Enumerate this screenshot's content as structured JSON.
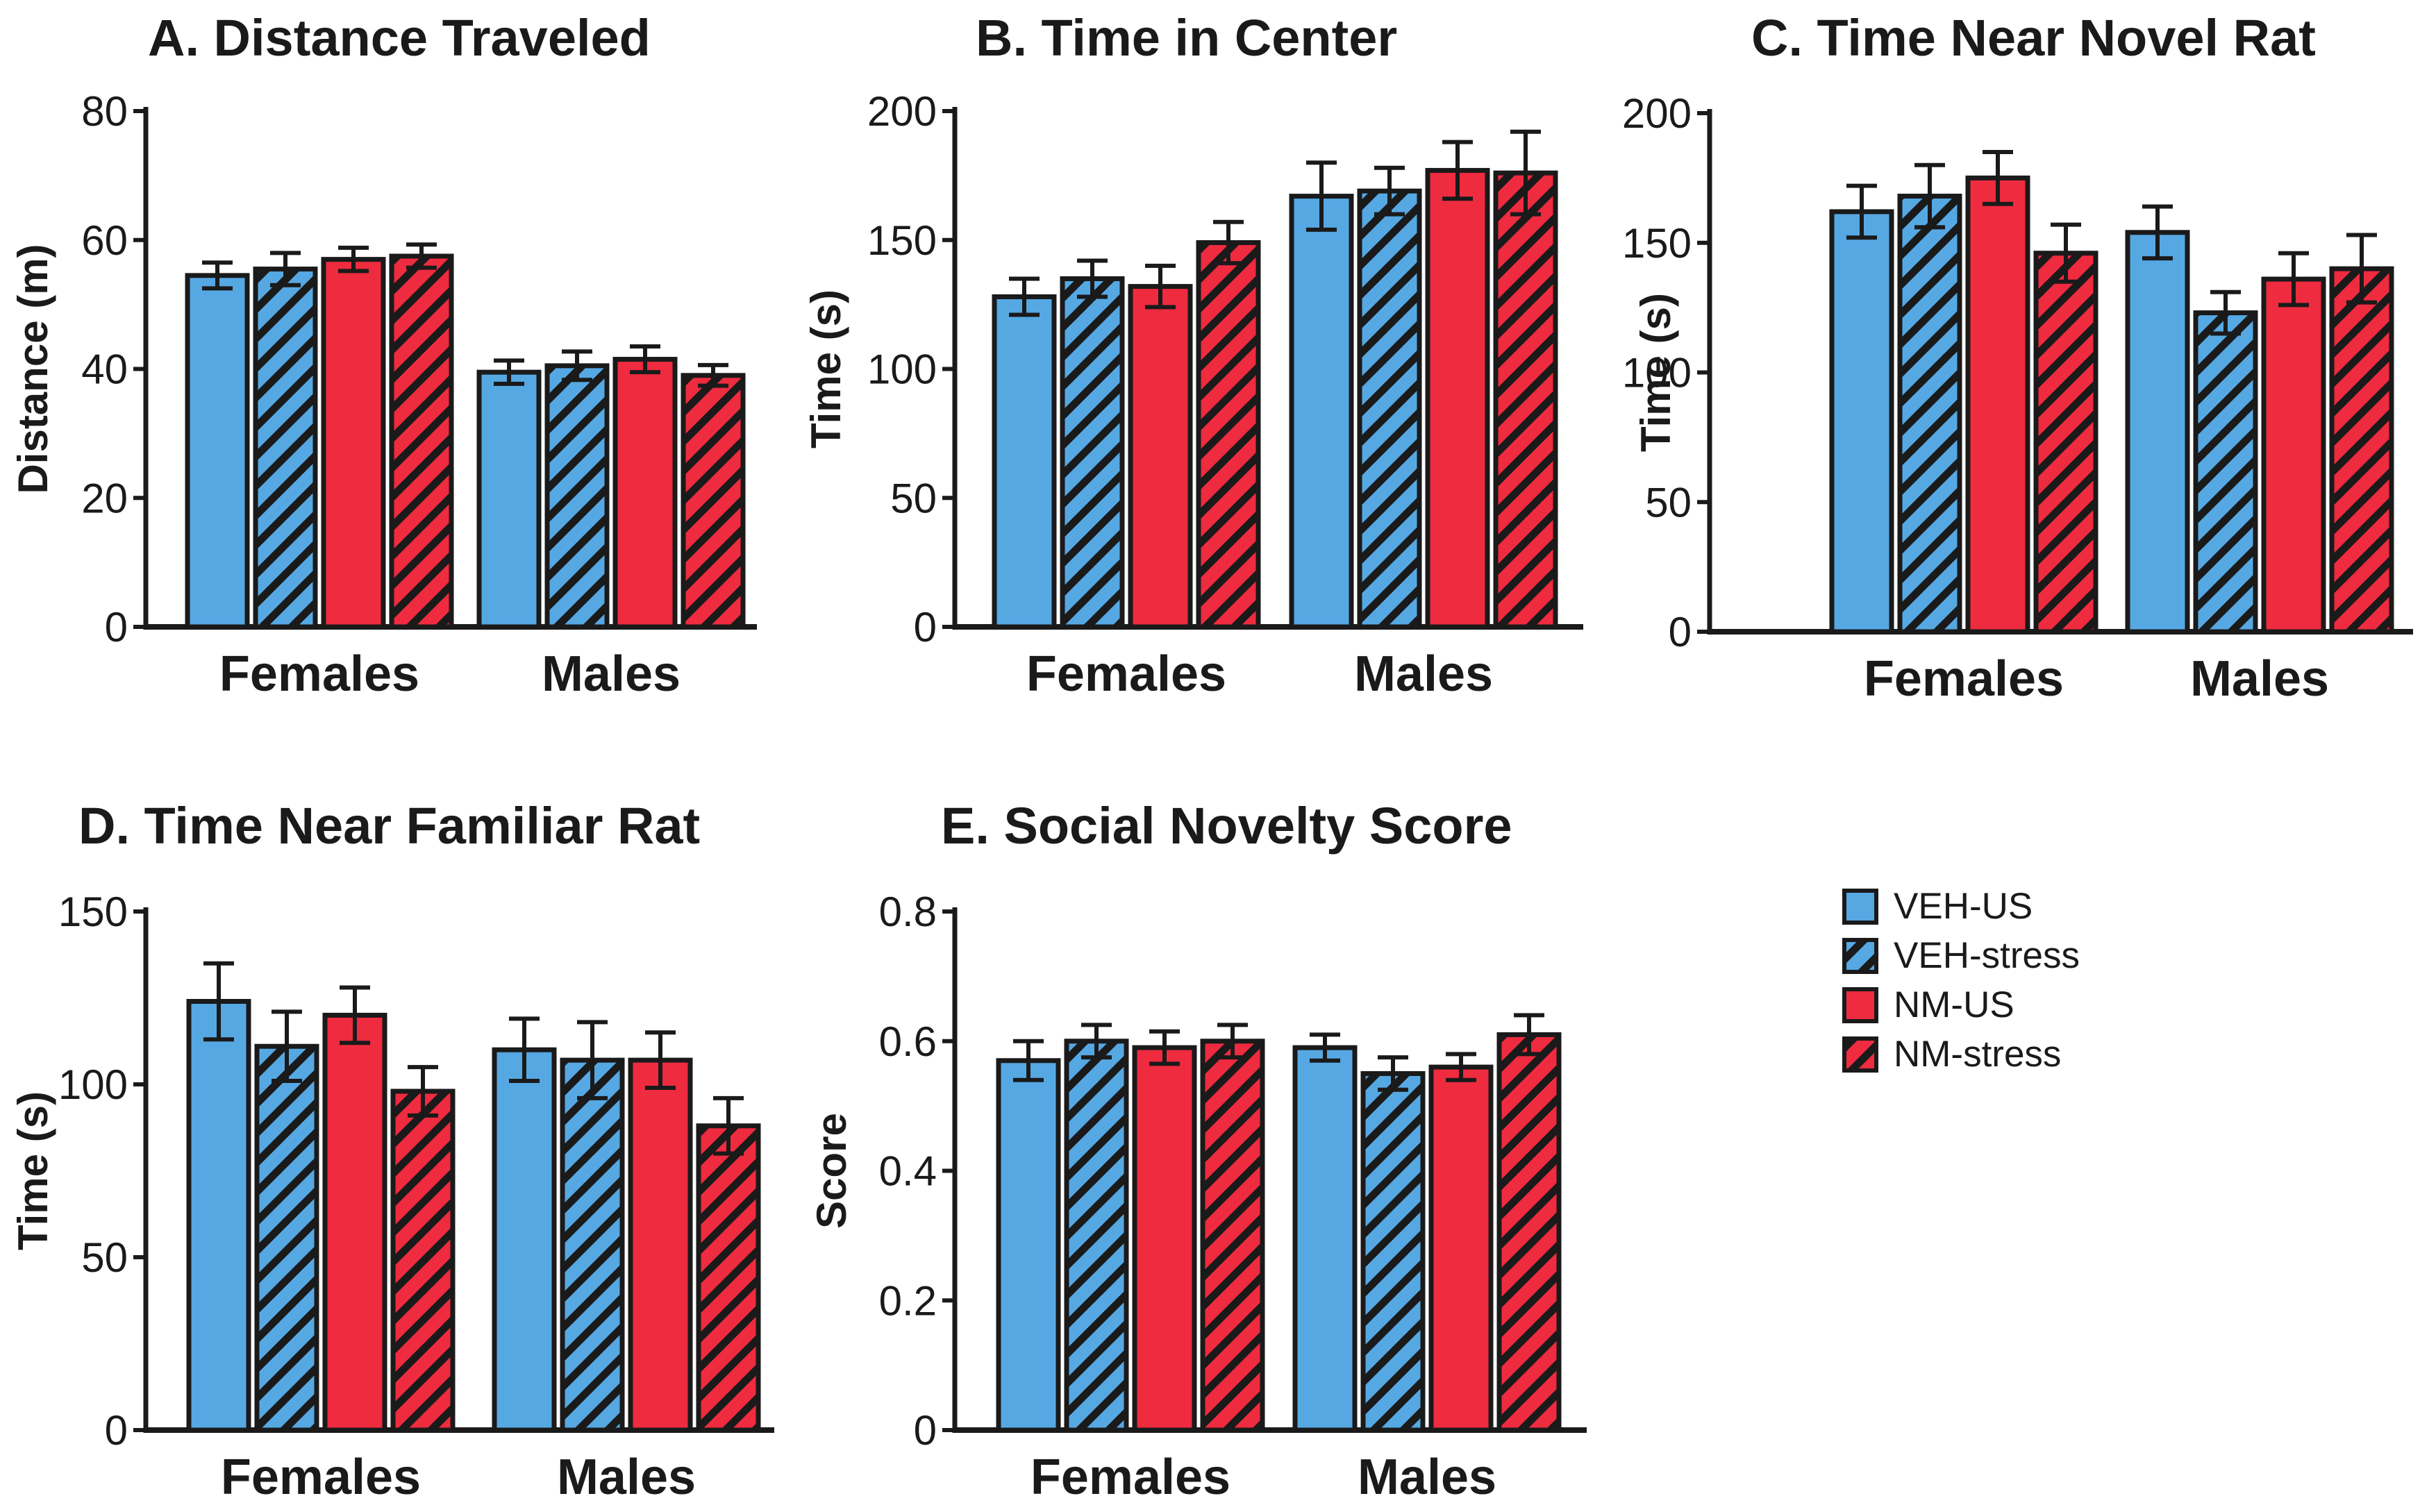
{
  "legend": [
    {
      "label": "VEH-US",
      "color": "#56a8e3",
      "hatched": false
    },
    {
      "label": "VEH-stress",
      "color": "#56a8e3",
      "hatched": true
    },
    {
      "label": "NM-US",
      "color": "#ef2b3f",
      "hatched": false
    },
    {
      "label": "NM-stress",
      "color": "#ef2b3f",
      "hatched": true
    }
  ],
  "chart_data": [
    {
      "id": "A",
      "type": "bar",
      "title": "A. Distance Traveled",
      "xlabel": "",
      "ylabel": "Distance (m)",
      "ylim": [
        0,
        80
      ],
      "yticks": [
        0,
        20,
        40,
        60,
        80
      ],
      "categories": [
        "Females",
        "Males"
      ],
      "series": [
        {
          "name": "VEH-US",
          "values": [
            54.5,
            39.5
          ],
          "errors": [
            2.0,
            1.8
          ]
        },
        {
          "name": "VEH-stress",
          "values": [
            55.5,
            40.5
          ],
          "errors": [
            2.5,
            2.2
          ]
        },
        {
          "name": "NM-US",
          "values": [
            57,
            41.5
          ],
          "errors": [
            1.8,
            2.0
          ]
        },
        {
          "name": "NM-stress",
          "values": [
            57.5,
            39
          ],
          "errors": [
            1.8,
            1.6
          ]
        }
      ]
    },
    {
      "id": "B",
      "type": "bar",
      "title": "B. Time in Center",
      "xlabel": "",
      "ylabel": "Time (s)",
      "ylim": [
        0,
        200
      ],
      "yticks": [
        0,
        50,
        100,
        150,
        200
      ],
      "categories": [
        "Females",
        "Males"
      ],
      "series": [
        {
          "name": "VEH-US",
          "values": [
            128,
            167
          ],
          "errors": [
            7,
            13
          ]
        },
        {
          "name": "VEH-stress",
          "values": [
            135,
            169
          ],
          "errors": [
            7,
            9
          ]
        },
        {
          "name": "NM-US",
          "values": [
            132,
            177
          ],
          "errors": [
            8,
            11
          ]
        },
        {
          "name": "NM-stress",
          "values": [
            149,
            176
          ],
          "errors": [
            8,
            16
          ]
        }
      ]
    },
    {
      "id": "C",
      "type": "bar",
      "title": "C. Time Near Novel Rat",
      "xlabel": "",
      "ylabel": "Time (s)",
      "ylim": [
        0,
        200
      ],
      "yticks": [
        0,
        50,
        100,
        150,
        200
      ],
      "categories": [
        "Females",
        "Males"
      ],
      "series": [
        {
          "name": "VEH-US",
          "values": [
            162,
            154
          ],
          "errors": [
            10,
            10
          ]
        },
        {
          "name": "VEH-stress",
          "values": [
            168,
            123
          ],
          "errors": [
            12,
            8
          ]
        },
        {
          "name": "NM-US",
          "values": [
            175,
            136
          ],
          "errors": [
            10,
            10
          ]
        },
        {
          "name": "NM-stress",
          "values": [
            146,
            140
          ],
          "errors": [
            11,
            13
          ]
        }
      ]
    },
    {
      "id": "D",
      "type": "bar",
      "title": "D. Time Near Familiar Rat",
      "xlabel": "",
      "ylabel": "Time (s)",
      "ylim": [
        0,
        150
      ],
      "yticks": [
        0,
        50,
        100,
        150
      ],
      "categories": [
        "Females",
        "Males"
      ],
      "series": [
        {
          "name": "VEH-US",
          "values": [
            124,
            110
          ],
          "errors": [
            11,
            9
          ]
        },
        {
          "name": "VEH-stress",
          "values": [
            111,
            107
          ],
          "errors": [
            10,
            11
          ]
        },
        {
          "name": "NM-US",
          "values": [
            120,
            107
          ],
          "errors": [
            8,
            8
          ]
        },
        {
          "name": "NM-stress",
          "values": [
            98,
            88
          ],
          "errors": [
            7,
            8
          ]
        }
      ]
    },
    {
      "id": "E",
      "type": "bar",
      "title": "E. Social Novelty Score",
      "xlabel": "",
      "ylabel": "Score",
      "ylim": [
        0,
        0.8
      ],
      "yticks": [
        0,
        0.2,
        0.4,
        0.6,
        0.8
      ],
      "categories": [
        "Females",
        "Males"
      ],
      "series": [
        {
          "name": "VEH-US",
          "values": [
            0.57,
            0.59
          ],
          "errors": [
            0.03,
            0.02
          ]
        },
        {
          "name": "VEH-stress",
          "values": [
            0.6,
            0.55
          ],
          "errors": [
            0.025,
            0.025
          ]
        },
        {
          "name": "NM-US",
          "values": [
            0.59,
            0.56
          ],
          "errors": [
            0.025,
            0.02
          ]
        },
        {
          "name": "NM-stress",
          "values": [
            0.6,
            0.61
          ],
          "errors": [
            0.025,
            0.03
          ]
        }
      ]
    }
  ]
}
